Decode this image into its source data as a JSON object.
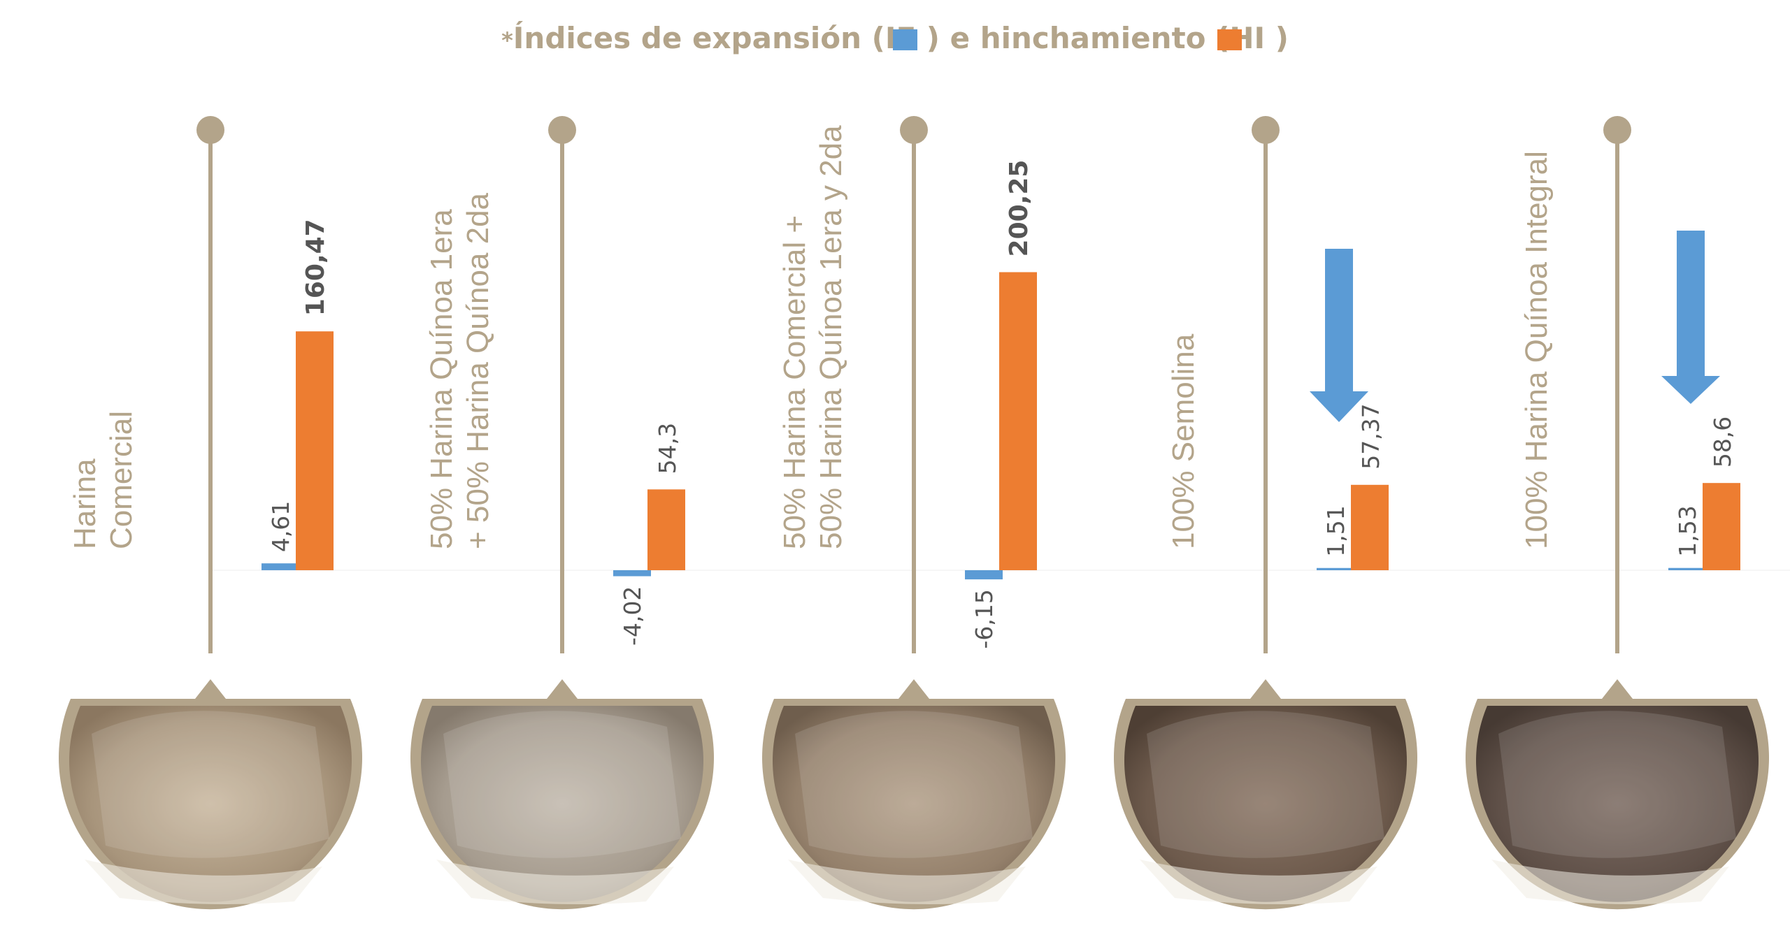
{
  "chart_data": {
    "type": "bar",
    "title": {
      "star": "*",
      "part1": "Índices de expansión (",
      "ie": "IE",
      "part2": ") e hinchamiento (",
      "hi": "HI",
      "part3": ")"
    },
    "colors": {
      "IE": "#5b9bd5",
      "HI": "#ed7d31",
      "accent": "#b3a48a"
    },
    "series": [
      {
        "name": "IE",
        "values": [
          4.61,
          -4.02,
          -6.15,
          1.51,
          1.53
        ]
      },
      {
        "name": "HI",
        "values": [
          160.47,
          54.3,
          200.25,
          57.37,
          58.6
        ]
      }
    ],
    "value_labels": {
      "IE": [
        "4,61",
        "-4,02",
        "-6,15",
        "1,51",
        "1,53"
      ],
      "HI": [
        "160,47",
        "54,3",
        "200,25",
        "57,37",
        "58,6"
      ]
    },
    "categories": [
      {
        "lines": [
          "Harina",
          "Comercial"
        ]
      },
      {
        "lines": [
          "50% Harina Quínoa 1era",
          "+ 50% Harina Quínoa 2da"
        ]
      },
      {
        "lines": [
          "50% Harina Comercial +",
          "50% Harina Quínoa  1era y 2da"
        ]
      },
      {
        "lines": [
          "100% Semolina"
        ]
      },
      {
        "lines": [
          "100% Harina Quínoa Integral"
        ]
      }
    ],
    "arrows": [
      {
        "group": 3,
        "direction": "down",
        "icon": "down-arrow-icon"
      },
      {
        "group": 4,
        "direction": "down",
        "icon": "down-arrow-icon"
      }
    ],
    "photo_icons": [
      "bread-photo-icon",
      "bread-photo-icon",
      "bread-photo-icon",
      "bread-photo-icon",
      "bread-photo-icon"
    ]
  }
}
